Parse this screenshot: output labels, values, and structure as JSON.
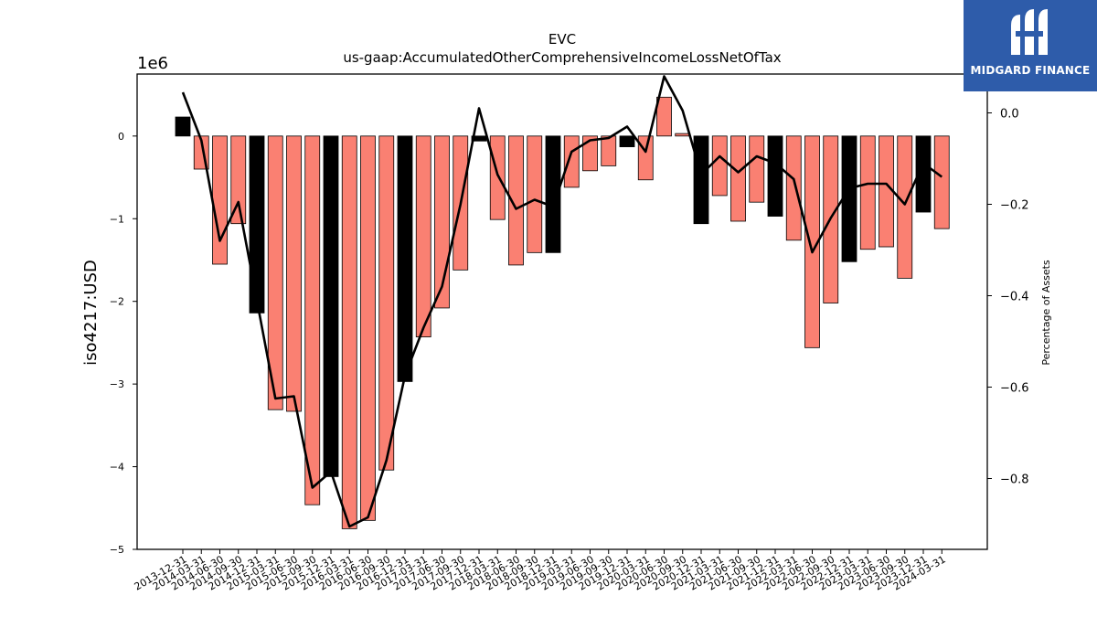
{
  "logo": {
    "name": "MIDGARD FINANCE"
  },
  "chart_data": {
    "type": "bar",
    "title": "EVC",
    "subtitle": "us-gaap:AccumulatedOtherComprehensiveIncomeLossNetOfTax",
    "ylabel": "iso4217:USD",
    "y_scale_label": "1e6",
    "y2label": "Percentage of Assets",
    "ylim": [
      -5000000,
      750000
    ],
    "y2lim": [
      -0.955,
      0.085
    ],
    "yticks": [
      0,
      -1000000,
      -2000000,
      -3000000,
      -4000000,
      -5000000
    ],
    "ytick_labels": [
      "0",
      "−1",
      "−2",
      "−3",
      "−4",
      "−5"
    ],
    "y2ticks": [
      0.0,
      -0.2,
      -0.4,
      -0.6,
      -0.8
    ],
    "y2tick_labels": [
      "0.0",
      "−0.2",
      "−0.4",
      "−0.6",
      "−0.8"
    ],
    "colors": {
      "bar": "#fa8072",
      "highlight": "#000000",
      "line": "#000000"
    },
    "categories": [
      "2013-12-31",
      "2014-03-31",
      "2014-06-30",
      "2014-09-30",
      "2014-12-31",
      "2015-03-31",
      "2015-06-30",
      "2015-09-30",
      "2015-12-31",
      "2016-03-31",
      "2016-06-30",
      "2016-09-30",
      "2016-12-31",
      "2017-03-31",
      "2017-06-30",
      "2017-09-30",
      "2017-12-31",
      "2018-03-31",
      "2018-06-30",
      "2018-09-30",
      "2018-12-31",
      "2019-03-31",
      "2019-06-30",
      "2019-09-30",
      "2019-12-31",
      "2020-03-31",
      "2020-06-30",
      "2020-09-30",
      "2020-12-31",
      "2021-03-31",
      "2021-06-30",
      "2021-09-30",
      "2021-12-31",
      "2022-03-31",
      "2022-06-30",
      "2022-09-30",
      "2022-12-31",
      "2023-03-31",
      "2023-06-30",
      "2023-09-30",
      "2023-12-31",
      "2024-03-31"
    ],
    "highlight_categories": [
      "2013-12-31",
      "2014-12-31",
      "2015-12-31",
      "2016-12-31",
      "2017-12-31",
      "2018-12-31",
      "2019-12-31",
      "2020-12-31",
      "2021-12-31",
      "2022-12-31",
      "2023-12-31"
    ],
    "series": [
      {
        "type": "bar",
        "values": [
          230000,
          -400000,
          -1550000,
          -1060000,
          -2140000,
          -3310000,
          -3330000,
          -4460000,
          -4120000,
          -4750000,
          -4650000,
          -4040000,
          -2970000,
          -2430000,
          -2080000,
          -1620000,
          -60000,
          -1010000,
          -1560000,
          -1410000,
          -1410000,
          -620000,
          -420000,
          -360000,
          -130000,
          -530000,
          470000,
          30000,
          -1060000,
          -720000,
          -1030000,
          -800000,
          -970000,
          -1260000,
          -2560000,
          -2020000,
          -1520000,
          -1370000,
          -1340000,
          -1720000,
          -920000,
          -1120000
        ]
      },
      {
        "type": "line",
        "axis": "right",
        "values": [
          0.045,
          -0.06,
          -0.28,
          -0.195,
          -0.41,
          -0.625,
          -0.62,
          -0.82,
          -0.785,
          -0.905,
          -0.885,
          -0.76,
          -0.575,
          -0.47,
          -0.38,
          -0.2,
          0.01,
          -0.135,
          -0.21,
          -0.19,
          -0.205,
          -0.085,
          -0.06,
          -0.055,
          -0.03,
          -0.085,
          0.08,
          0.005,
          -0.135,
          -0.095,
          -0.13,
          -0.095,
          -0.11,
          -0.145,
          -0.305,
          -0.23,
          -0.165,
          -0.155,
          -0.155,
          -0.2,
          -0.11,
          -0.14
        ]
      }
    ]
  }
}
